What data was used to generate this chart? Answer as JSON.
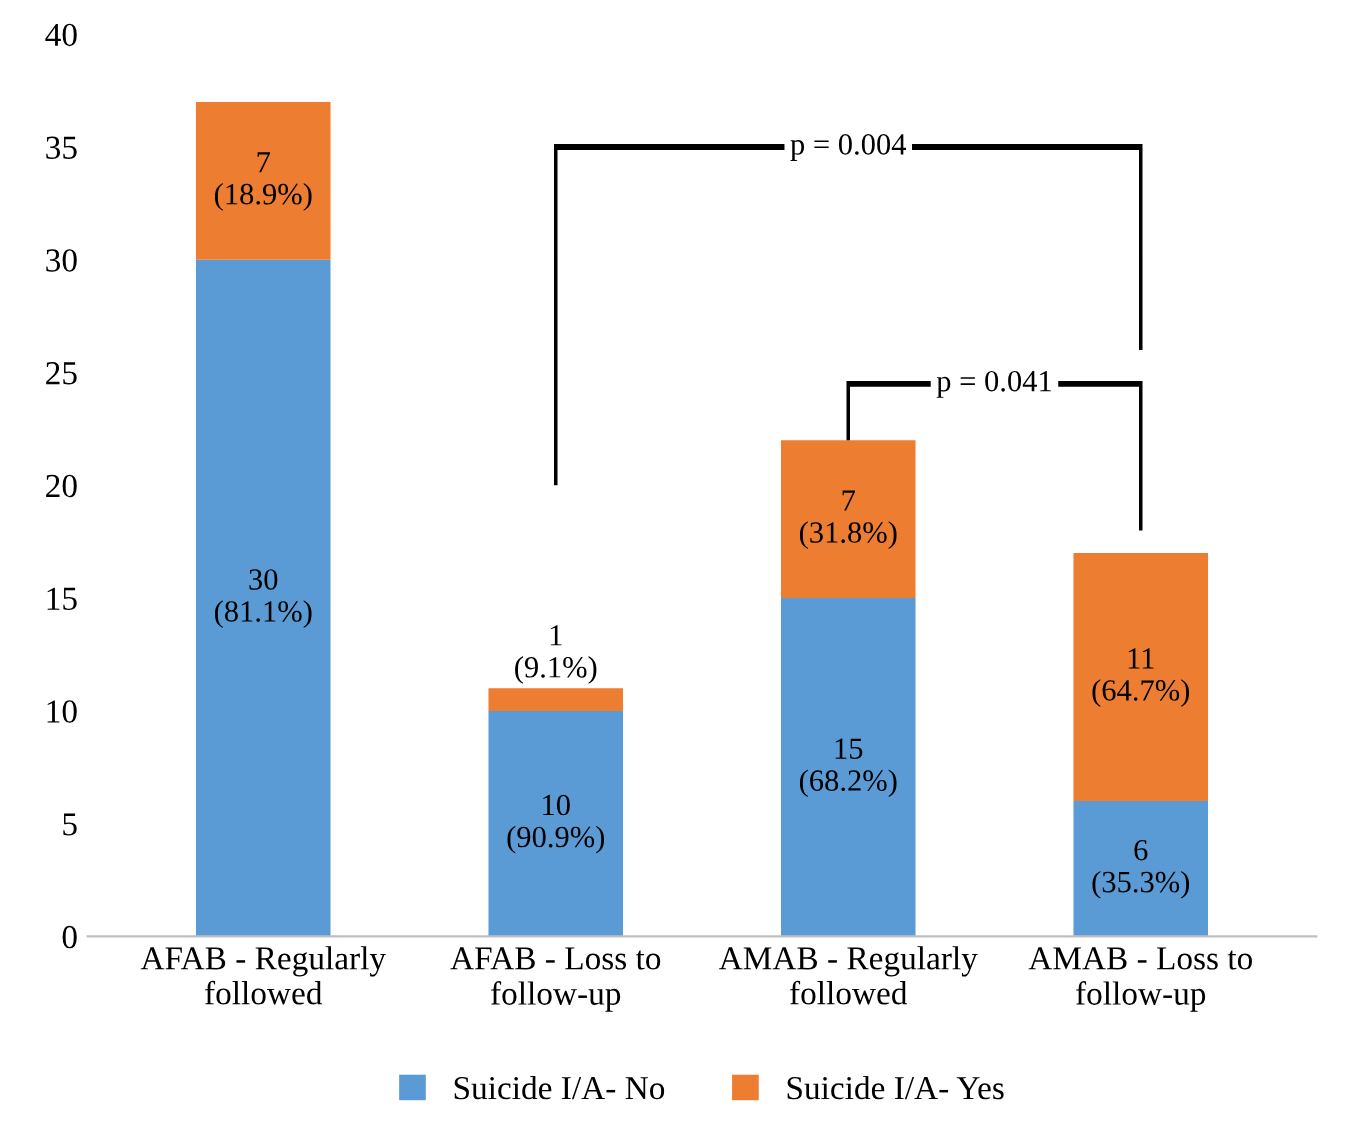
{
  "chart_data": {
    "type": "bar",
    "stacked": true,
    "categories": [
      "AFAB - Regularly\nfollowed",
      "AFAB - Loss to\nfollow-up",
      "AMAB - Regularly\nfollowed",
      "AMAB - Loss to\nfollow-up"
    ],
    "series": [
      {
        "name": "Suicide I/A- No",
        "color": "#5b9bd5",
        "values": [
          30,
          10,
          15,
          6
        ],
        "value_labels": [
          "30\n(81.1%)",
          "10\n(90.9%)",
          "15\n(68.2%)",
          "6\n(35.3%)"
        ]
      },
      {
        "name": "Suicide I/A- Yes",
        "color": "#ed7d31",
        "values": [
          7,
          1,
          7,
          11
        ],
        "value_labels": [
          "7\n(18.9%)",
          "1\n(9.1%)",
          "7\n(31.8%)",
          "11\n(64.7%)"
        ]
      }
    ],
    "ylim": [
      0,
      40
    ],
    "yticks": [
      0,
      5,
      10,
      15,
      20,
      25,
      30,
      35,
      40
    ],
    "grid": false,
    "legend": "bottom",
    "annotations": [
      "p = 0.004",
      "p = 0.041"
    ]
  }
}
